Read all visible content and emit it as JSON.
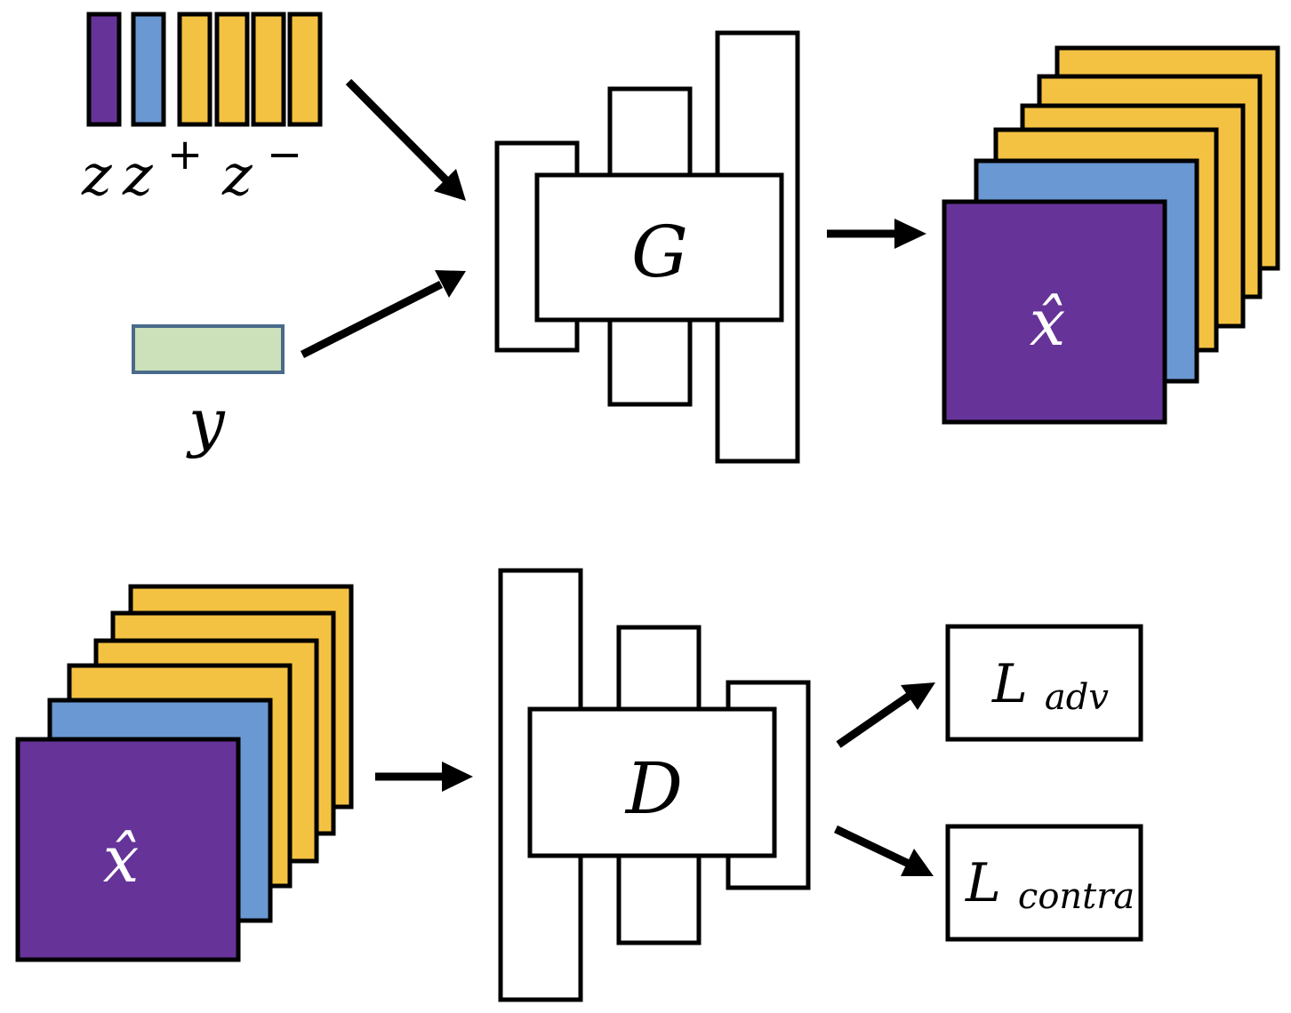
{
  "colors": {
    "purple": "#663399",
    "blue": "#6A98D2",
    "yellow": "#F4C242",
    "green": "#CCE0B9",
    "green_border": "#4A6A8A",
    "stroke": "#000000",
    "white": "#ffffff"
  },
  "generator": {
    "latent_segments": [
      "purple",
      "blue",
      "yellow",
      "yellow",
      "yellow",
      "yellow"
    ],
    "latent_labels": {
      "z": "z",
      "z_pos": "z",
      "z_pos_sup": "+",
      "z_neg": "z",
      "z_neg_sup": "−"
    },
    "condition_label": "y",
    "network_label": "G",
    "output_label": "x̂",
    "output_stack_colors": [
      "yellow",
      "yellow",
      "yellow",
      "yellow",
      "blue",
      "purple"
    ]
  },
  "discriminator": {
    "input_label": "x̂",
    "input_stack_colors": [
      "yellow",
      "yellow",
      "yellow",
      "yellow",
      "blue",
      "purple"
    ],
    "network_label": "D",
    "loss_adv": {
      "main": "L",
      "sub": "adv"
    },
    "loss_contra": {
      "main": "L",
      "sub": "contra"
    }
  }
}
